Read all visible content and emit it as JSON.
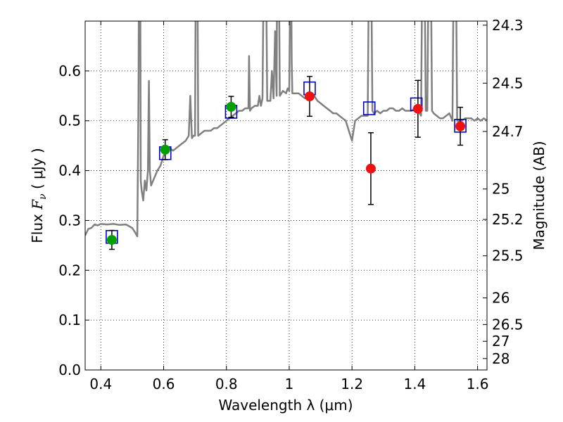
{
  "chart_data": {
    "type": "scatter",
    "xlabel": "Wavelength  λ (μm)",
    "ylabel_prefix": "Flux ",
    "ylabel_math": "F",
    "ylabel_sub": "ν",
    "ylabel_unit": " ( μJy )",
    "y2label": "Magnitude (AB)",
    "xlim": [
      0.35,
      1.63
    ],
    "ylim": [
      0.0,
      0.7
    ],
    "grid": true,
    "x_ticks": [
      0.4,
      0.6,
      0.8,
      1.0,
      1.2,
      1.4,
      1.6
    ],
    "x_tick_labels": [
      "0.4",
      "0.6",
      "0.8",
      "1",
      "1.2",
      "1.4",
      "1.6"
    ],
    "y_ticks": [
      0.0,
      0.1,
      0.2,
      0.3,
      0.4,
      0.5,
      0.6
    ],
    "y_tick_labels": [
      "0.0",
      "0.1",
      "0.2",
      "0.3",
      "0.4",
      "0.5",
      "0.6"
    ],
    "mag_ticks": [
      {
        "mag": 24.3,
        "label": "24.3"
      },
      {
        "mag": 24.5,
        "label": "24.5"
      },
      {
        "mag": 24.7,
        "label": "24.7"
      },
      {
        "mag": 25.0,
        "label": "25"
      },
      {
        "mag": 25.2,
        "label": "25.2"
      },
      {
        "mag": 25.5,
        "label": "25.5"
      },
      {
        "mag": 26.0,
        "label": "26"
      },
      {
        "mag": 26.5,
        "label": "26.5"
      },
      {
        "mag": 27.0,
        "label": "27"
      },
      {
        "mag": 28.0,
        "label": "28"
      }
    ],
    "colors": {
      "spectrum": "#808080",
      "model_box": "#0000cc",
      "green": "#00a000",
      "red": "#ee1111",
      "errorbar": "#000000",
      "grid": "#000000"
    },
    "model_points": [
      {
        "x": 0.435,
        "y": 0.267
      },
      {
        "x": 0.605,
        "y": 0.435
      },
      {
        "x": 0.815,
        "y": 0.518
      },
      {
        "x": 1.065,
        "y": 0.565
      },
      {
        "x": 1.255,
        "y": 0.525
      },
      {
        "x": 1.405,
        "y": 0.533
      },
      {
        "x": 1.545,
        "y": 0.49
      }
    ],
    "green_points": [
      {
        "x": 0.435,
        "y": 0.261,
        "err": 0.019
      },
      {
        "x": 0.605,
        "y": 0.442,
        "err": 0.02
      },
      {
        "x": 0.815,
        "y": 0.528,
        "err": 0.021
      }
    ],
    "red_points": [
      {
        "x": 1.065,
        "y": 0.549,
        "err": 0.04
      },
      {
        "x": 1.26,
        "y": 0.404,
        "err": 0.072
      },
      {
        "x": 1.41,
        "y": 0.524,
        "err": 0.057
      },
      {
        "x": 1.545,
        "y": 0.489,
        "err": 0.038
      }
    ],
    "spectrum": [
      [
        0.35,
        0.27
      ],
      [
        0.36,
        0.283
      ],
      [
        0.37,
        0.285
      ],
      [
        0.38,
        0.292
      ],
      [
        0.39,
        0.29
      ],
      [
        0.4,
        0.293
      ],
      [
        0.42,
        0.292
      ],
      [
        0.44,
        0.293
      ],
      [
        0.46,
        0.291
      ],
      [
        0.48,
        0.292
      ],
      [
        0.5,
        0.285
      ],
      [
        0.51,
        0.275
      ],
      [
        0.516,
        0.268
      ],
      [
        0.52,
        0.55
      ],
      [
        0.522,
        0.9
      ],
      [
        0.525,
        0.9
      ],
      [
        0.527,
        0.38
      ],
      [
        0.53,
        0.36
      ],
      [
        0.535,
        0.34
      ],
      [
        0.54,
        0.38
      ],
      [
        0.545,
        0.36
      ],
      [
        0.55,
        0.4
      ],
      [
        0.553,
        0.58
      ],
      [
        0.556,
        0.4
      ],
      [
        0.56,
        0.37
      ],
      [
        0.57,
        0.385
      ],
      [
        0.58,
        0.4
      ],
      [
        0.59,
        0.41
      ],
      [
        0.6,
        0.43
      ],
      [
        0.61,
        0.44
      ],
      [
        0.62,
        0.445
      ],
      [
        0.63,
        0.44
      ],
      [
        0.64,
        0.445
      ],
      [
        0.65,
        0.45
      ],
      [
        0.66,
        0.455
      ],
      [
        0.67,
        0.46
      ],
      [
        0.68,
        0.47
      ],
      [
        0.685,
        0.55
      ],
      [
        0.69,
        0.465
      ],
      [
        0.695,
        0.47
      ],
      [
        0.7,
        0.47
      ],
      [
        0.703,
        0.9
      ],
      [
        0.707,
        0.9
      ],
      [
        0.71,
        0.47
      ],
      [
        0.72,
        0.475
      ],
      [
        0.73,
        0.48
      ],
      [
        0.74,
        0.48
      ],
      [
        0.75,
        0.48
      ],
      [
        0.76,
        0.485
      ],
      [
        0.77,
        0.485
      ],
      [
        0.78,
        0.49
      ],
      [
        0.79,
        0.495
      ],
      [
        0.8,
        0.5
      ],
      [
        0.81,
        0.505
      ],
      [
        0.82,
        0.51
      ],
      [
        0.83,
        0.515
      ],
      [
        0.84,
        0.52
      ],
      [
        0.85,
        0.52
      ],
      [
        0.86,
        0.525
      ],
      [
        0.87,
        0.525
      ],
      [
        0.872,
        0.63
      ],
      [
        0.875,
        0.52
      ],
      [
        0.88,
        0.525
      ],
      [
        0.89,
        0.53
      ],
      [
        0.9,
        0.53
      ],
      [
        0.905,
        0.55
      ],
      [
        0.91,
        0.53
      ],
      [
        0.915,
        0.545
      ],
      [
        0.92,
        0.9
      ],
      [
        0.925,
        0.9
      ],
      [
        0.93,
        0.54
      ],
      [
        0.94,
        0.54
      ],
      [
        0.945,
        0.6
      ],
      [
        0.95,
        0.545
      ],
      [
        0.955,
        0.68
      ],
      [
        0.96,
        0.55
      ],
      [
        0.962,
        0.9
      ],
      [
        0.966,
        0.9
      ],
      [
        0.97,
        0.55
      ],
      [
        0.98,
        0.56
      ],
      [
        0.99,
        0.555
      ],
      [
        0.995,
        0.565
      ],
      [
        1.0,
        0.56
      ],
      [
        1.005,
        0.9
      ],
      [
        1.008,
        0.62
      ],
      [
        1.01,
        0.555
      ],
      [
        1.02,
        0.555
      ],
      [
        1.03,
        0.555
      ],
      [
        1.04,
        0.55
      ],
      [
        1.05,
        0.545
      ],
      [
        1.06,
        0.545
      ],
      [
        1.07,
        0.55
      ],
      [
        1.08,
        0.55
      ],
      [
        1.09,
        0.54
      ],
      [
        1.1,
        0.535
      ],
      [
        1.11,
        0.53
      ],
      [
        1.12,
        0.525
      ],
      [
        1.13,
        0.52
      ],
      [
        1.14,
        0.515
      ],
      [
        1.15,
        0.515
      ],
      [
        1.16,
        0.51
      ],
      [
        1.17,
        0.505
      ],
      [
        1.18,
        0.5
      ],
      [
        1.19,
        0.48
      ],
      [
        1.2,
        0.46
      ],
      [
        1.21,
        0.5
      ],
      [
        1.22,
        0.505
      ],
      [
        1.23,
        0.51
      ],
      [
        1.24,
        0.51
      ],
      [
        1.25,
        0.51
      ],
      [
        1.255,
        0.9
      ],
      [
        1.26,
        0.9
      ],
      [
        1.265,
        0.52
      ],
      [
        1.27,
        0.515
      ],
      [
        1.28,
        0.52
      ],
      [
        1.29,
        0.515
      ],
      [
        1.3,
        0.52
      ],
      [
        1.31,
        0.52
      ],
      [
        1.32,
        0.525
      ],
      [
        1.33,
        0.525
      ],
      [
        1.34,
        0.52
      ],
      [
        1.35,
        0.52
      ],
      [
        1.36,
        0.525
      ],
      [
        1.37,
        0.52
      ],
      [
        1.38,
        0.52
      ],
      [
        1.39,
        0.52
      ],
      [
        1.4,
        0.525
      ],
      [
        1.41,
        0.52
      ],
      [
        1.42,
        0.51
      ],
      [
        1.425,
        0.9
      ],
      [
        1.43,
        0.9
      ],
      [
        1.435,
        0.52
      ],
      [
        1.44,
        0.52
      ],
      [
        1.445,
        0.9
      ],
      [
        1.45,
        0.9
      ],
      [
        1.455,
        0.52
      ],
      [
        1.46,
        0.515
      ],
      [
        1.47,
        0.51
      ],
      [
        1.48,
        0.505
      ],
      [
        1.49,
        0.505
      ],
      [
        1.5,
        0.51
      ],
      [
        1.51,
        0.515
      ],
      [
        1.52,
        0.5
      ],
      [
        1.525,
        0.9
      ],
      [
        1.53,
        0.9
      ],
      [
        1.535,
        0.5
      ],
      [
        1.54,
        0.5
      ],
      [
        1.55,
        0.5
      ],
      [
        1.56,
        0.505
      ],
      [
        1.57,
        0.505
      ],
      [
        1.58,
        0.505
      ],
      [
        1.59,
        0.5
      ],
      [
        1.6,
        0.505
      ],
      [
        1.61,
        0.5
      ],
      [
        1.62,
        0.505
      ],
      [
        1.63,
        0.5
      ]
    ]
  }
}
